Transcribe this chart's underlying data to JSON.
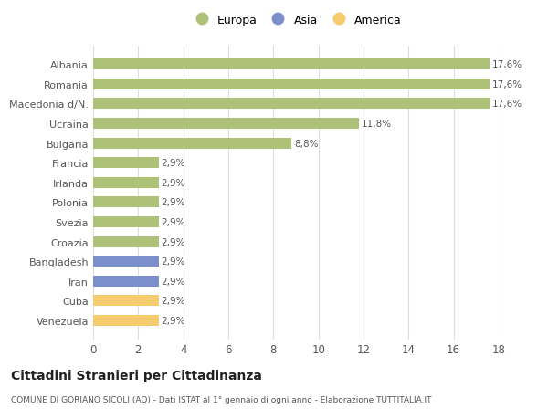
{
  "categories": [
    "Venezuela",
    "Cuba",
    "Iran",
    "Bangladesh",
    "Croazia",
    "Svezia",
    "Polonia",
    "Irlanda",
    "Francia",
    "Bulgaria",
    "Ucraina",
    "Macedonia d/N.",
    "Romania",
    "Albania"
  ],
  "values": [
    2.9,
    2.9,
    2.9,
    2.9,
    2.9,
    2.9,
    2.9,
    2.9,
    2.9,
    8.8,
    11.8,
    17.6,
    17.6,
    17.6
  ],
  "labels": [
    "2,9%",
    "2,9%",
    "2,9%",
    "2,9%",
    "2,9%",
    "2,9%",
    "2,9%",
    "2,9%",
    "2,9%",
    "8,8%",
    "11,8%",
    "17,6%",
    "17,6%",
    "17,6%"
  ],
  "bar_colors": [
    "#f5cc6e",
    "#f5cc6e",
    "#7b8fcc",
    "#7b8fcc",
    "#adc177",
    "#adc177",
    "#adc177",
    "#adc177",
    "#adc177",
    "#adc177",
    "#adc177",
    "#adc177",
    "#adc177",
    "#adc177"
  ],
  "legend_labels": [
    "Europa",
    "Asia",
    "America"
  ],
  "legend_colors": [
    "#adc177",
    "#7b8fcc",
    "#f5cc6e"
  ],
  "title": "Cittadini Stranieri per Cittadinanza",
  "subtitle": "COMUNE DI GORIANO SICOLI (AQ) - Dati ISTAT al 1° gennaio di ogni anno - Elaborazione TUTTITALIA.IT",
  "xlim": [
    0,
    18
  ],
  "xticks": [
    0,
    2,
    4,
    6,
    8,
    10,
    12,
    14,
    16,
    18
  ],
  "background_color": "#ffffff",
  "grid_color": "#dddddd"
}
